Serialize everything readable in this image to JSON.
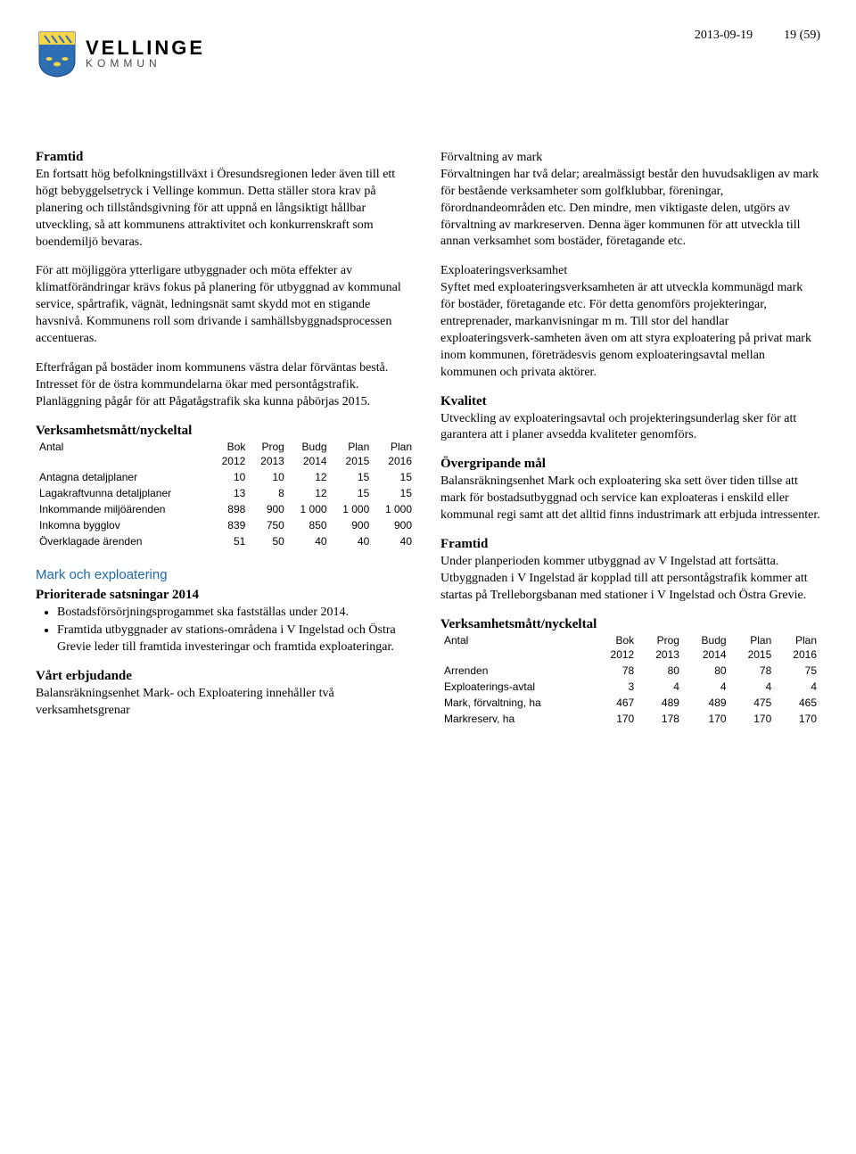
{
  "header": {
    "logo_line1": "VELLINGE",
    "logo_line2": "KOMMUN",
    "date": "2013-09-19",
    "page": "19 (59)"
  },
  "left": {
    "h_framtid": "Framtid",
    "p1": "En fortsatt hög befolkningstillväxt i Öresundsregionen leder även till ett högt bebyggelsetryck i Vellinge kommun. Detta ställer stora krav på planering och tillståndsgivning för att uppnå en långsiktigt hållbar utveckling, så att kommunens attraktivitet och konkurrenskraft som boendemiljö bevaras.",
    "p2": "För att möjliggöra ytterligare utbyggnader och möta effekter av klimatförändringar krävs fokus på planering för utbyggnad av kommunal service, spårtrafik, vägnät, ledningsnät samt skydd mot en stigande havsnivå. Kommunens roll som drivande i samhällsbyggnadsprocessen accentueras.",
    "p3": "Efterfrågan på bostäder inom kommunens västra delar förväntas bestå. Intresset för de östra kommundelarna ökar med persontågstrafik. Planläggning pågår för att Pågatågstrafik ska kunna påbörjas 2015.",
    "tbl1_title": "Verksamhetsmått/nyckeltal",
    "tbl1": {
      "head_row1": [
        "Antal",
        "Bok",
        "Prog",
        "Budg",
        "Plan",
        "Plan"
      ],
      "head_row2": [
        "",
        "2012",
        "2013",
        "2014",
        "2015",
        "2016"
      ],
      "rows": [
        [
          "Antagna detaljplaner",
          "10",
          "10",
          "12",
          "15",
          "15"
        ],
        [
          "Lagakraftvunna detaljplaner",
          "13",
          "8",
          "12",
          "15",
          "15"
        ],
        [
          "Inkommande miljöärenden",
          "898",
          "900",
          "1 000",
          "1 000",
          "1 000"
        ],
        [
          "Inkomna bygglov",
          "839",
          "750",
          "850",
          "900",
          "900"
        ],
        [
          "Överklagade ärenden",
          "51",
          "50",
          "40",
          "40",
          "40"
        ]
      ]
    },
    "section_mark": "Mark och exploatering",
    "h_prio": "Prioriterade satsningar 2014",
    "bullets": [
      "Bostadsförsörjningsprogammet ska fastställas under 2014.",
      "Framtida utbyggnader av stations-områdena i V Ingelstad och Östra Grevie leder till framtida investeringar och framtida exploateringar."
    ],
    "h_vart": "Vårt erbjudande",
    "p_vart": "Balansräkningsenhet Mark- och Exploatering innehåller två verksamhetsgrenar"
  },
  "right": {
    "p_forv1": "Förvaltning av mark",
    "p_forv2": "Förvaltningen har två delar; arealmässigt består den huvudsakligen av mark för bestående verksamheter som golfklubbar, föreningar, förordnandeområden etc. Den mindre, men viktigaste delen, utgörs av förvaltning av markreserven. Denna äger kommunen för att utveckla till annan verksamhet som bostäder, företagande etc.",
    "p_expl1": "Exploateringsverksamhet",
    "p_expl2": "Syftet med exploateringsverksamheten är att utveckla kommunägd mark för bostäder, företagande etc. För detta genomförs projekteringar, entreprenader, markanvisningar m m. Till stor del handlar exploateringsverk-samheten även om att styra exploatering på privat mark inom kommunen, företrädesvis genom exploateringsavtal mellan kommunen och privata aktörer.",
    "h_kvalitet": "Kvalitet",
    "p_kvalitet": "Utveckling av exploateringsavtal och projekteringsunderlag sker för att garantera att i planer avsedda kvaliteter genomförs.",
    "h_mal": "Övergripande mål",
    "p_mal": "Balansräkningsenhet Mark och exploatering ska sett över tiden tillse att mark för bostadsutbyggnad och service kan exploateras i enskild eller kommunal regi samt att det alltid finns industrimark att erbjuda intressenter.",
    "h_framtid2": "Framtid",
    "p_framtid2": "Under planperioden kommer utbyggnad av V Ingelstad att fortsätta. Utbyggnaden i V Ingelstad är kopplad till att persontågstrafik kommer att startas på Trelleborgsbanan med stationer i V Ingelstad och Östra Grevie.",
    "tbl2_title": "Verksamhetsmått/nyckeltal",
    "tbl2": {
      "head_row1": [
        "Antal",
        "Bok",
        "Prog",
        "Budg",
        "Plan",
        "Plan"
      ],
      "head_row2": [
        "",
        "2012",
        "2013",
        "2014",
        "2015",
        "2016"
      ],
      "rows": [
        [
          "Arrenden",
          "78",
          "80",
          "80",
          "78",
          "75"
        ],
        [
          "Exploaterings-avtal",
          "3",
          "4",
          "4",
          "4",
          "4"
        ],
        [
          "Mark, förvaltning, ha",
          "467",
          "489",
          "489",
          "475",
          "465"
        ],
        [
          "Markreserv, ha",
          "170",
          "178",
          "170",
          "170",
          "170"
        ]
      ]
    }
  },
  "colors": {
    "blue": "#1f6aa5",
    "shield_blue": "#2e6eb5",
    "shield_yellow": "#f7d54a"
  }
}
